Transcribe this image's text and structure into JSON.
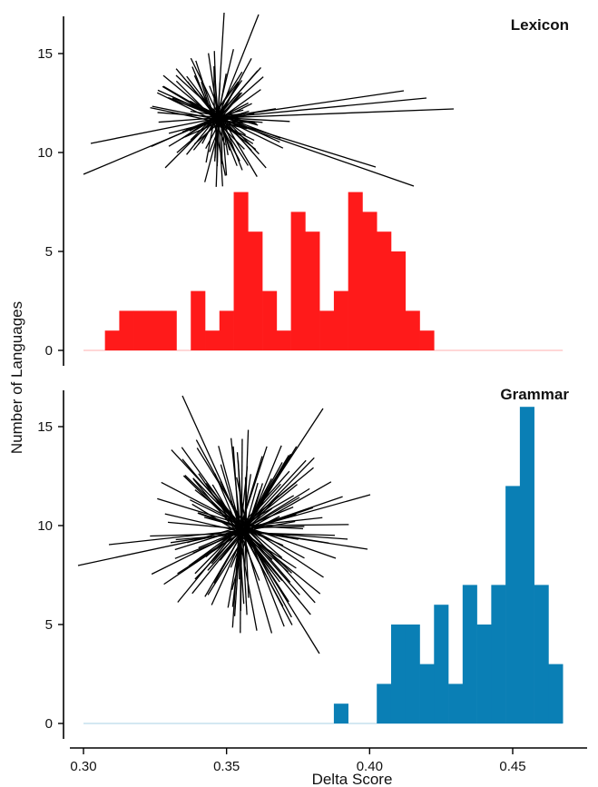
{
  "chart_data": {
    "type": "bar",
    "xlabel": "Delta Score",
    "ylabel": "Number of Languages",
    "xlim": [
      0.295,
      0.475
    ],
    "x_ticks": [
      0.3,
      0.35,
      0.4,
      0.45
    ],
    "x_tick_labels": [
      "0.30",
      "0.35",
      "0.40",
      "0.45"
    ],
    "bin_width": 0.005,
    "panels": [
      {
        "title": "Lexicon",
        "color": "#ff1a1a",
        "ylim": [
          -0.5,
          17
        ],
        "y_ticks": [
          0,
          5,
          10,
          15
        ],
        "y_tick_labels": [
          "0",
          "5",
          "10",
          "15"
        ],
        "bins_start": [
          0.3075,
          0.3125,
          0.3175,
          0.3225,
          0.3275,
          0.3375,
          0.3425,
          0.3475,
          0.3525,
          0.3575,
          0.3625,
          0.3675,
          0.3725,
          0.3775,
          0.3825,
          0.3875,
          0.3925,
          0.3975,
          0.4025,
          0.4075,
          0.4125,
          0.4175,
          0.4225
        ],
        "counts": [
          1,
          2,
          2,
          2,
          2,
          3,
          1,
          2,
          8,
          6,
          3,
          1,
          7,
          6,
          2,
          3,
          8,
          7,
          6,
          5,
          2,
          1,
          0
        ]
      },
      {
        "title": "Grammar",
        "color": "#0a7fb5",
        "ylim": [
          -0.5,
          17
        ],
        "y_ticks": [
          0,
          5,
          10,
          15
        ],
        "y_tick_labels": [
          "0",
          "5",
          "10",
          "15"
        ],
        "bins_start": [
          0.3875,
          0.4025,
          0.4075,
          0.4125,
          0.4175,
          0.4225,
          0.4275,
          0.4325,
          0.4375,
          0.4425,
          0.4475,
          0.4525,
          0.4575,
          0.4625
        ],
        "counts": [
          1,
          2,
          5,
          5,
          3,
          6,
          2,
          7,
          5,
          7,
          12,
          16,
          7,
          3
        ]
      }
    ]
  }
}
